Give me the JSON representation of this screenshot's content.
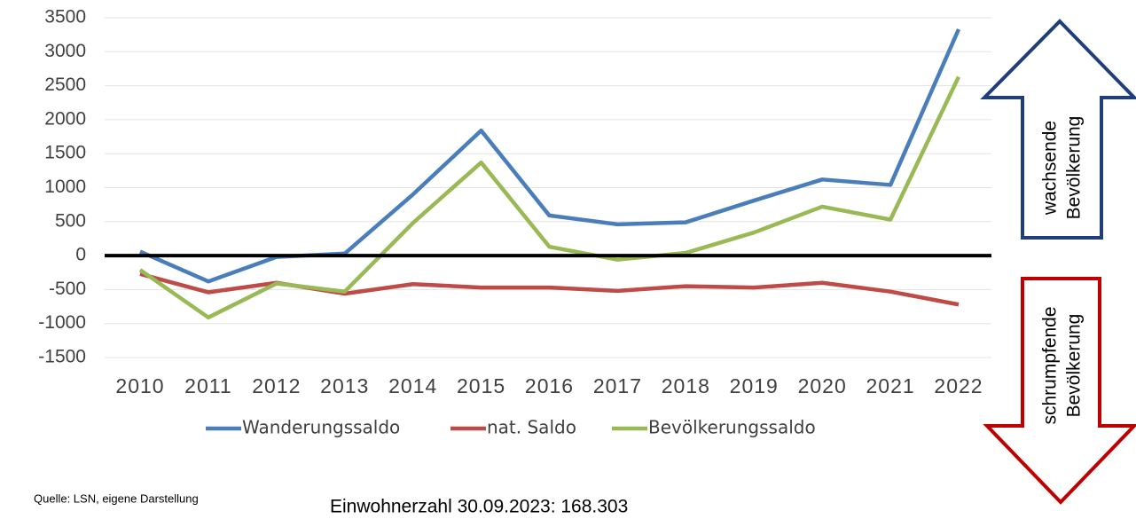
{
  "chart_data": {
    "type": "line",
    "categories": [
      "2010",
      "2011",
      "2012",
      "2013",
      "2014",
      "2015",
      "2016",
      "2017",
      "2018",
      "2019",
      "2020",
      "2021",
      "2022"
    ],
    "series": [
      {
        "name": "Wanderungssaldo",
        "color": "#4a7ebb",
        "values": [
          60,
          -380,
          -20,
          30,
          900,
          1840,
          590,
          460,
          490,
          810,
          1120,
          1040,
          3330
        ]
      },
      {
        "name": "nat. Saldo",
        "color": "#be4b48",
        "values": [
          -270,
          -540,
          -400,
          -560,
          -420,
          -470,
          -470,
          -520,
          -450,
          -470,
          -400,
          -530,
          -720
        ]
      },
      {
        "name": "Bevölkerungssaldo",
        "color": "#98b954",
        "values": [
          -210,
          -910,
          -410,
          -530,
          480,
          1370,
          130,
          -60,
          40,
          340,
          720,
          530,
          2630
        ]
      }
    ],
    "ylim": [
      -1500,
      3500
    ],
    "yticks": [
      -1500,
      -1000,
      -500,
      0,
      500,
      1000,
      1500,
      2000,
      2500,
      3000,
      3500
    ],
    "grid": true,
    "legend": "bottom",
    "arrow_up_text": [
      "wachsende",
      "Bevölkerung"
    ],
    "arrow_down_text": [
      "schrumpfende",
      "Bevölkerung"
    ],
    "source": "Quelle: LSN, eigene Darstellung",
    "note": "Einwohnerzahl 30.09.2023: 168.303"
  }
}
